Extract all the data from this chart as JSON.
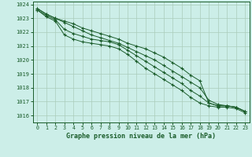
{
  "title": "Graphe pression niveau de la mer (hPa)",
  "background_color": "#cceee8",
  "grid_color": "#aaccbb",
  "line_color": "#1a5c2a",
  "xlim": [
    -0.5,
    23.5
  ],
  "ylim": [
    1015.5,
    1024.2
  ],
  "yticks": [
    1016,
    1017,
    1018,
    1019,
    1020,
    1021,
    1022,
    1023,
    1024
  ],
  "xticks": [
    0,
    1,
    2,
    3,
    4,
    5,
    6,
    7,
    8,
    9,
    10,
    11,
    12,
    13,
    14,
    15,
    16,
    17,
    18,
    19,
    20,
    21,
    22,
    23
  ],
  "series": [
    [
      1023.7,
      1023.3,
      1023.0,
      1022.8,
      1022.6,
      1022.3,
      1022.1,
      1021.9,
      1021.7,
      1021.5,
      1021.2,
      1021.0,
      1020.8,
      1020.5,
      1020.2,
      1019.8,
      1019.4,
      1018.9,
      1018.5,
      1016.9,
      1016.7,
      1016.7,
      1016.6,
      1016.3
    ],
    [
      1023.7,
      1023.3,
      1023.0,
      1022.7,
      1022.4,
      1022.1,
      1021.8,
      1021.6,
      1021.4,
      1021.2,
      1020.9,
      1020.6,
      1020.3,
      1020.0,
      1019.6,
      1019.2,
      1018.8,
      1018.4,
      1018.0,
      1017.1,
      1016.8,
      1016.7,
      1016.6,
      1016.3
    ],
    [
      1023.6,
      1023.2,
      1022.9,
      1022.2,
      1021.9,
      1021.7,
      1021.5,
      1021.4,
      1021.3,
      1021.1,
      1020.7,
      1020.3,
      1019.9,
      1019.5,
      1019.1,
      1018.7,
      1018.3,
      1017.8,
      1017.4,
      1016.9,
      1016.7,
      1016.7,
      1016.6,
      1016.3
    ],
    [
      1023.6,
      1023.1,
      1022.8,
      1021.8,
      1021.5,
      1021.3,
      1021.2,
      1021.1,
      1021.0,
      1020.8,
      1020.4,
      1019.9,
      1019.4,
      1019.0,
      1018.6,
      1018.2,
      1017.8,
      1017.3,
      1016.9,
      1016.7,
      1016.6,
      1016.6,
      1016.5,
      1016.2
    ]
  ]
}
